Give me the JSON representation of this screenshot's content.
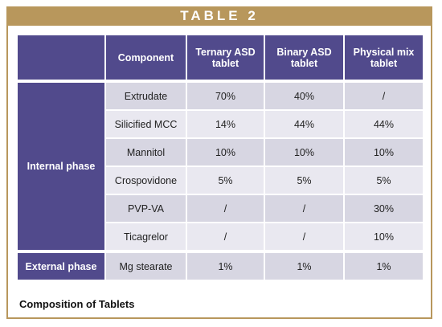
{
  "header": {
    "title": "TABLE 2"
  },
  "table": {
    "columns": [
      "Component",
      "Ternary ASD tablet",
      "Binary ASD tablet",
      "Physical mix tablet"
    ],
    "groups": [
      {
        "label": "Internal phase",
        "rows": [
          [
            "Extrudate",
            "70%",
            "40%",
            "/"
          ],
          [
            "Silicified MCC",
            "14%",
            "44%",
            "44%"
          ],
          [
            "Mannitol",
            "10%",
            "10%",
            "10%"
          ],
          [
            "Crospovidone",
            "5%",
            "5%",
            "5%"
          ],
          [
            "PVP-VA",
            "/",
            "/",
            "30%"
          ],
          [
            "Ticagrelor",
            "/",
            "/",
            "10%"
          ]
        ]
      },
      {
        "label": "External phase",
        "rows": [
          [
            "Mg stearate",
            "1%",
            "1%",
            "1%"
          ]
        ]
      }
    ]
  },
  "caption": "Composition of Tablets"
}
